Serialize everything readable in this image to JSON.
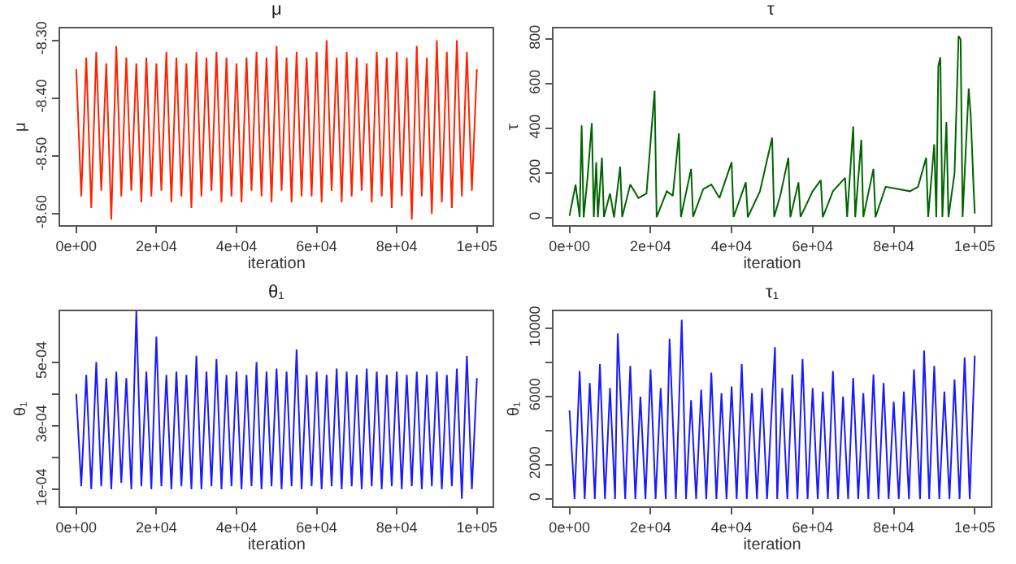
{
  "chart_data": [
    {
      "type": "line",
      "title": "μ",
      "xlabel": "iteration",
      "ylabel": "μ",
      "x": [
        0,
        1250,
        2500,
        3750,
        5000,
        6250,
        7500,
        8750,
        10000,
        11250,
        12500,
        13750,
        15000,
        16250,
        17500,
        18750,
        20000,
        21250,
        22500,
        23750,
        25000,
        26250,
        27500,
        28750,
        30000,
        31250,
        32500,
        33750,
        35000,
        36250,
        37500,
        38750,
        40000,
        41250,
        42500,
        43750,
        45000,
        46250,
        47500,
        48750,
        50000,
        51250,
        52500,
        53750,
        55000,
        56250,
        57500,
        58750,
        60000,
        61250,
        62500,
        63750,
        65000,
        66250,
        67500,
        68750,
        70000,
        71250,
        72500,
        73750,
        75000,
        76250,
        77500,
        78750,
        80000,
        81250,
        82500,
        83750,
        85000,
        86250,
        87500,
        88750,
        90000,
        91250,
        92500,
        93750,
        95000,
        96250,
        97500,
        98750,
        100000
      ],
      "xlim": [
        -4000,
        104000
      ],
      "xticks": [
        {
          "value": 0,
          "label": "0e+00"
        },
        {
          "value": 20000,
          "label": "2e+04"
        },
        {
          "value": 40000,
          "label": "4e+04"
        },
        {
          "value": 60000,
          "label": "6e+04"
        },
        {
          "value": 80000,
          "label": "8e+04"
        },
        {
          "value": 100000,
          "label": "1e+05"
        }
      ],
      "ylim": [
        -8.62,
        -8.28
      ],
      "yticks": [
        {
          "value": -8.6,
          "label": "-8.60"
        },
        {
          "value": -8.5,
          "label": "-8.50"
        },
        {
          "value": -8.4,
          "label": "-8.40"
        },
        {
          "value": -8.3,
          "label": "-8.30"
        }
      ],
      "series": [
        {
          "color": "#ff2200",
          "values": [
            -8.35,
            -8.57,
            -8.33,
            -8.59,
            -8.32,
            -8.56,
            -8.34,
            -8.61,
            -8.31,
            -8.57,
            -8.33,
            -8.56,
            -8.34,
            -8.58,
            -8.33,
            -8.57,
            -8.34,
            -8.56,
            -8.32,
            -8.58,
            -8.33,
            -8.57,
            -8.34,
            -8.59,
            -8.32,
            -8.57,
            -8.33,
            -8.56,
            -8.32,
            -8.58,
            -8.33,
            -8.57,
            -8.34,
            -8.58,
            -8.33,
            -8.56,
            -8.32,
            -8.57,
            -8.33,
            -8.58,
            -8.31,
            -8.56,
            -8.33,
            -8.58,
            -8.32,
            -8.57,
            -8.33,
            -8.57,
            -8.32,
            -8.58,
            -8.3,
            -8.56,
            -8.33,
            -8.58,
            -8.32,
            -8.57,
            -8.33,
            -8.56,
            -8.34,
            -8.58,
            -8.32,
            -8.57,
            -8.33,
            -8.59,
            -8.32,
            -8.57,
            -8.33,
            -8.61,
            -8.31,
            -8.57,
            -8.33,
            -8.6,
            -8.3,
            -8.58,
            -8.32,
            -8.59,
            -8.3,
            -8.57,
            -8.32,
            -8.56,
            -8.35
          ]
        }
      ]
    },
    {
      "type": "line",
      "title": "τ",
      "xlabel": "iteration",
      "ylabel": "τ",
      "x": [
        0,
        1500,
        2500,
        3000,
        3500,
        4500,
        5500,
        6000,
        6600,
        7000,
        8000,
        8500,
        10000,
        11000,
        12500,
        13000,
        15000,
        17000,
        19000,
        21000,
        21500,
        24000,
        25500,
        27000,
        27500,
        30000,
        30500,
        33000,
        35000,
        37000,
        40000,
        40500,
        43500,
        44000,
        47000,
        50000,
        50500,
        52000,
        54000,
        54500,
        56500,
        57000,
        60000,
        62000,
        62500,
        65000,
        68000,
        68500,
        70000,
        70500,
        72000,
        72500,
        75000,
        75500,
        78000,
        81000,
        84000,
        86000,
        88000,
        88500,
        90000,
        90500,
        91000,
        91500,
        92000,
        93000,
        93500,
        95000,
        96000,
        96500,
        97000,
        98500,
        99000,
        99700,
        100000
      ],
      "xlim": [
        -4000,
        104000
      ],
      "xticks": [
        {
          "value": 0,
          "label": "0e+00"
        },
        {
          "value": 20000,
          "label": "2e+04"
        },
        {
          "value": 40000,
          "label": "4e+04"
        },
        {
          "value": 60000,
          "label": "6e+04"
        },
        {
          "value": 80000,
          "label": "8e+04"
        },
        {
          "value": 100000,
          "label": "1e+05"
        }
      ],
      "ylim": [
        -33,
        848
      ],
      "yticks": [
        0,
        200,
        400,
        600,
        800
      ],
      "series": [
        {
          "color": "#006400",
          "values": [
            10,
            150,
            5,
            415,
            3,
            190,
            425,
            5,
            250,
            4,
            270,
            5,
            110,
            3,
            230,
            5,
            150,
            90,
            110,
            570,
            4,
            120,
            100,
            380,
            5,
            220,
            6,
            130,
            150,
            90,
            250,
            5,
            160,
            4,
            120,
            360,
            5,
            100,
            270,
            4,
            160,
            5,
            120,
            170,
            4,
            120,
            180,
            5,
            410,
            4,
            350,
            5,
            220,
            4,
            140,
            130,
            120,
            140,
            270,
            5,
            330,
            4,
            680,
            720,
            5,
            430,
            4,
            200,
            815,
            800,
            5,
            580,
            460,
            140,
            20
          ]
        }
      ]
    },
    {
      "type": "line",
      "title": "θ₁",
      "xlabel": "iteration",
      "ylabel": "θ₁",
      "x": [
        0,
        1250,
        2500,
        3750,
        5000,
        6250,
        7500,
        8750,
        10000,
        11250,
        12500,
        13750,
        15000,
        16250,
        17500,
        18750,
        20000,
        21250,
        22500,
        23750,
        25000,
        26250,
        27500,
        28750,
        30000,
        31250,
        32500,
        33750,
        35000,
        36250,
        37500,
        38750,
        40000,
        41250,
        42500,
        43750,
        45000,
        46250,
        47500,
        48750,
        50000,
        51250,
        52500,
        53750,
        55000,
        56250,
        57500,
        58750,
        60000,
        61250,
        62500,
        63750,
        65000,
        66250,
        67500,
        68750,
        70000,
        71250,
        72500,
        73750,
        75000,
        76250,
        77500,
        78750,
        80000,
        81250,
        82500,
        83750,
        85000,
        86250,
        87500,
        88750,
        90000,
        91250,
        92500,
        93750,
        95000,
        96250,
        97500,
        98750,
        100000
      ],
      "xlim": [
        -4000,
        104000
      ],
      "xticks": [
        {
          "value": 0,
          "label": "0e+00"
        },
        {
          "value": 20000,
          "label": "2e+04"
        },
        {
          "value": 40000,
          "label": "4e+04"
        },
        {
          "value": 60000,
          "label": "6e+04"
        },
        {
          "value": 80000,
          "label": "8e+04"
        },
        {
          "value": 100000,
          "label": "1e+05"
        }
      ],
      "ylim": [
        4.6e-05,
        0.00066
      ],
      "yticks": [
        {
          "value": 0.0001,
          "label": "1e-04"
        },
        {
          "value": 0.0002,
          "label": null
        },
        {
          "value": 0.0003,
          "label": "3e-04"
        },
        {
          "value": 0.0004,
          "label": null
        },
        {
          "value": 0.0005,
          "label": "5e-04"
        }
      ],
      "series": [
        {
          "color": "#1a1aff",
          "values": [
            0.0004,
            0.00011,
            0.00046,
            0.0001,
            0.0005,
            0.00011,
            0.00045,
            0.0001,
            0.00047,
            0.00012,
            0.00045,
            0.0001,
            0.00066,
            0.00011,
            0.00047,
            0.0001,
            0.00058,
            0.00011,
            0.00046,
            0.0001,
            0.00047,
            0.00011,
            0.00046,
            0.0001,
            0.00052,
            0.0001,
            0.00047,
            0.00011,
            0.00051,
            0.0001,
            0.00046,
            0.00011,
            0.00047,
            0.0001,
            0.00046,
            0.00011,
            0.0005,
            0.0001,
            0.00047,
            0.00011,
            0.00048,
            0.0001,
            0.00047,
            0.00011,
            0.00054,
            0.0001,
            0.00046,
            0.00011,
            0.00047,
            0.0001,
            0.00046,
            0.00011,
            0.00048,
            0.0001,
            0.00047,
            0.00011,
            0.00046,
            0.0001,
            0.00048,
            0.00011,
            0.00047,
            0.0001,
            0.00046,
            0.00011,
            0.00047,
            0.0001,
            0.00046,
            0.00011,
            0.00047,
            0.0001,
            0.00046,
            0.00011,
            0.00047,
            0.0001,
            0.00046,
            0.00011,
            0.00048,
            7e-05,
            0.00052,
            0.0001,
            0.00045
          ]
        }
      ]
    },
    {
      "type": "line",
      "title": "τ₁",
      "xlabel": "iteration",
      "ylabel": "θ₁",
      "x": [
        0,
        1250,
        2500,
        3750,
        5000,
        6250,
        7500,
        8750,
        10000,
        11250,
        11900,
        13750,
        15000,
        16250,
        17500,
        18750,
        20000,
        21250,
        22500,
        23750,
        24700,
        26250,
        27700,
        28750,
        30000,
        31250,
        32500,
        33750,
        35000,
        36250,
        37500,
        38750,
        40000,
        41250,
        42500,
        43750,
        45000,
        46250,
        47500,
        48750,
        50700,
        51250,
        52500,
        53750,
        55000,
        56250,
        57500,
        58750,
        60000,
        61250,
        62500,
        63750,
        65000,
        66250,
        67500,
        68750,
        70000,
        71250,
        72500,
        73750,
        75000,
        76250,
        77500,
        78750,
        80000,
        81250,
        82500,
        83750,
        85000,
        86500,
        87500,
        88750,
        90000,
        91250,
        92500,
        93750,
        95000,
        96250,
        97500,
        98750,
        100000
      ],
      "xlim": [
        -4000,
        104000
      ],
      "xticks": [
        {
          "value": 0,
          "label": "0e+00"
        },
        {
          "value": 20000,
          "label": "2e+04"
        },
        {
          "value": 40000,
          "label": "4e+04"
        },
        {
          "value": 60000,
          "label": "6e+04"
        },
        {
          "value": 80000,
          "label": "8e+04"
        },
        {
          "value": 100000,
          "label": "1e+05"
        }
      ],
      "ylim": [
        -440,
        11000
      ],
      "yticks": [
        0,
        2000,
        {
          "value": 4000,
          "label": null
        },
        6000,
        {
          "value": 8000,
          "label": null
        },
        10000
      ],
      "series": [
        {
          "color": "#1a1aff",
          "values": [
            5200,
            0,
            7500,
            0,
            6800,
            0,
            7900,
            0,
            6500,
            0,
            9700,
            0,
            7800,
            0,
            6000,
            0,
            7600,
            0,
            6500,
            0,
            9400,
            0,
            10500,
            0,
            5800,
            0,
            6400,
            0,
            7400,
            0,
            6200,
            0,
            6600,
            0,
            7900,
            0,
            6200,
            0,
            6500,
            0,
            8900,
            0,
            6500,
            0,
            7300,
            0,
            8200,
            0,
            6500,
            0,
            6300,
            0,
            7500,
            0,
            6000,
            0,
            7100,
            0,
            6200,
            0,
            7300,
            0,
            6800,
            0,
            5700,
            0,
            6300,
            0,
            7600,
            0,
            8700,
            0,
            7800,
            0,
            6300,
            0,
            7000,
            0,
            8300,
            0,
            8400
          ]
        }
      ]
    }
  ]
}
